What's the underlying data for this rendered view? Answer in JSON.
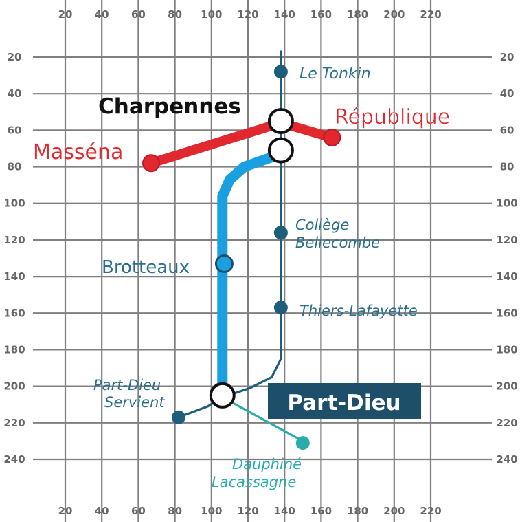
{
  "grid": {
    "x_ticks": [
      20,
      40,
      60,
      80,
      100,
      120,
      140,
      160,
      180,
      200,
      220
    ],
    "y_ticks": [
      20,
      40,
      60,
      80,
      100,
      120,
      140,
      160,
      180,
      200,
      220,
      240
    ]
  },
  "colors": {
    "grid": "#808080",
    "red_line": "#e0282e",
    "blue_line": "#1aa0e0",
    "dark_teal": "#1d5e7a",
    "light_teal": "#2aacac",
    "station_label": "#2b6f8c",
    "black_label": "#111111",
    "badge_bg": "#1d4f6a",
    "badge_text": "#ffffff"
  },
  "lines": {
    "red": [
      [
        67,
        78
      ],
      [
        138,
        56
      ],
      [
        166,
        64
      ]
    ],
    "blue": [
      [
        106,
        206
      ],
      [
        106,
        96
      ],
      [
        110,
        87
      ],
      [
        118,
        80
      ],
      [
        138,
        73
      ]
    ],
    "teal_main": [
      [
        138,
        17
      ],
      [
        138,
        185
      ],
      [
        133,
        195
      ],
      [
        121,
        201
      ],
      [
        106,
        206
      ],
      [
        98,
        211
      ],
      [
        82,
        217
      ]
    ],
    "teal_branch": [
      [
        106,
        206
      ],
      [
        150,
        230
      ]
    ]
  },
  "stations": [
    {
      "name": "Le Tonkin",
      "x": 138,
      "y": 28,
      "kind": "small-dark"
    },
    {
      "name": "Charpennes",
      "x": 138,
      "y": 55,
      "kind": "interchange"
    },
    {
      "name": "Charpennes",
      "x": 138,
      "y": 71,
      "kind": "interchange"
    },
    {
      "name": "République",
      "x": 166,
      "y": 64,
      "kind": "red"
    },
    {
      "name": "Masséna",
      "x": 67,
      "y": 78,
      "kind": "red"
    },
    {
      "name": "Collège Bellecombe",
      "x": 138,
      "y": 116,
      "kind": "small-dark"
    },
    {
      "name": "Brotteaux",
      "x": 107,
      "y": 133,
      "kind": "blue"
    },
    {
      "name": "Thiers-Lafayette",
      "x": 138,
      "y": 157,
      "kind": "small-dark"
    },
    {
      "name": "Part-Dieu",
      "x": 106,
      "y": 205,
      "kind": "interchange"
    },
    {
      "name": "Part-Dieu Servient",
      "x": 82,
      "y": 217,
      "kind": "small-dark"
    },
    {
      "name": "Dauphiné Lacassagne",
      "x": 150,
      "y": 231,
      "kind": "small-teal"
    }
  ],
  "labels": {
    "le_tonkin": "Le Tonkin",
    "charpennes": "Charpennes",
    "republique": "République",
    "massena": "Masséna",
    "college_1": "Collège",
    "college_2": "Bellecombe",
    "brotteaux": "Brotteaux",
    "thiers": "Thiers-Lafayette",
    "servient_1": "Part-Dieu",
    "servient_2": "Servient",
    "part_dieu": "Part-Dieu",
    "dauphine_1": "Dauphiné",
    "dauphine_2": "Lacassagne"
  }
}
